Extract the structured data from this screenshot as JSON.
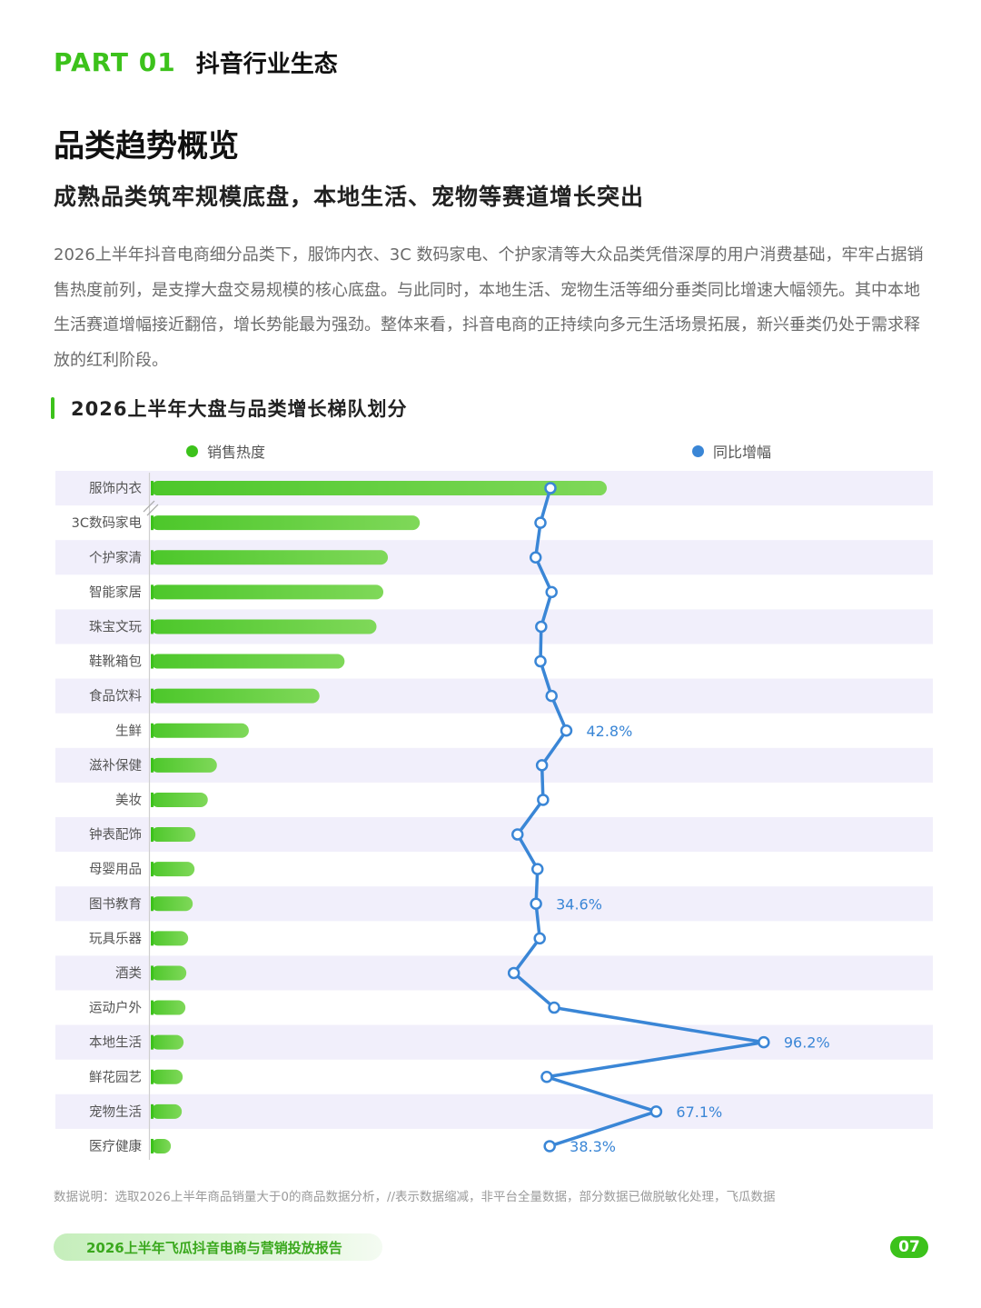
{
  "header": {
    "part_label": "PART 01",
    "part_title": "抖音行业生态"
  },
  "page_title": "品类趋势概览",
  "page_subtitle": "成熟品类筑牢规模底盘，本地生活、宠物等赛道增长突出",
  "intro_text": "2026上半年抖音电商细分品类下，服饰内衣、3C 数码家电、个护家清等大众品类凭借深厚的用户消费基础，牢牢占据销售热度前列，是支撑大盘交易规模的核心底盘。与此同时，本地生活、宠物生活等细分垂类同比增速大幅领先。其中本地生活赛道增幅接近翻倍，增长势能最为强劲。整体来看，抖音电商的正持续向多元生活场景拓展，新兴垂类仍处于需求释放的红利阶段。",
  "colors": {
    "accent_green": "#3cc21b",
    "bar_green": "#7fd859",
    "line_blue": "#3a86d6",
    "row_stripe": "#f1effb"
  },
  "chart_data": {
    "type": "bar",
    "title": "2026上半年大盘与品类增长梯队划分",
    "categories": [
      "服饰内衣",
      "3C数码家电",
      "个护家清",
      "智能家居",
      "珠宝文玩",
      "鞋靴箱包",
      "食品饮料",
      "生鲜",
      "滋补保健",
      "美妆",
      "钟表配饰",
      "母婴用品",
      "图书教育",
      "玩具乐器",
      "酒类",
      "运动户外",
      "本地生活",
      "鲜花园艺",
      "宠物生活",
      "医疗健康"
    ],
    "axis_break_note": "//",
    "series": [
      {
        "name": "销售热度",
        "type": "bar",
        "color": "#7fd859",
        "values": [
          100,
          59,
          52,
          51,
          49.5,
          42.5,
          37,
          21.5,
          14.5,
          12.5,
          9.8,
          9.6,
          9.2,
          8.2,
          7.8,
          7.6,
          7.2,
          7.0,
          6.8,
          4.4
        ]
      },
      {
        "name": "同比增幅",
        "type": "line",
        "color": "#3a86d6",
        "unit": "%",
        "values": [
          38.5,
          35.8,
          34.5,
          38.8,
          36.0,
          35.8,
          38.8,
          42.8,
          36.2,
          36.5,
          29.6,
          35.0,
          34.6,
          35.6,
          28.6,
          39.5,
          96.2,
          37.5,
          67.1,
          38.3
        ],
        "labels": [
          "",
          "",
          "",
          "",
          "",
          "",
          "",
          "42.8%",
          "",
          "",
          "",
          "",
          "34.6%",
          "",
          "",
          "",
          "96.2%",
          "",
          "67.1%",
          "38.3%"
        ]
      }
    ],
    "xlim_line": [
      10,
      110
    ],
    "grid": false,
    "legend_position": "top"
  },
  "footnote": "数据说明：选取2026上半年商品销量大于0的商品数据分析，//表示数据缩减，非平台全量数据，部分数据已做脱敏化处理，飞瓜数据",
  "footer": {
    "report_title": "2026上半年飞瓜抖音电商与营销投放报告",
    "page_number": "07"
  }
}
